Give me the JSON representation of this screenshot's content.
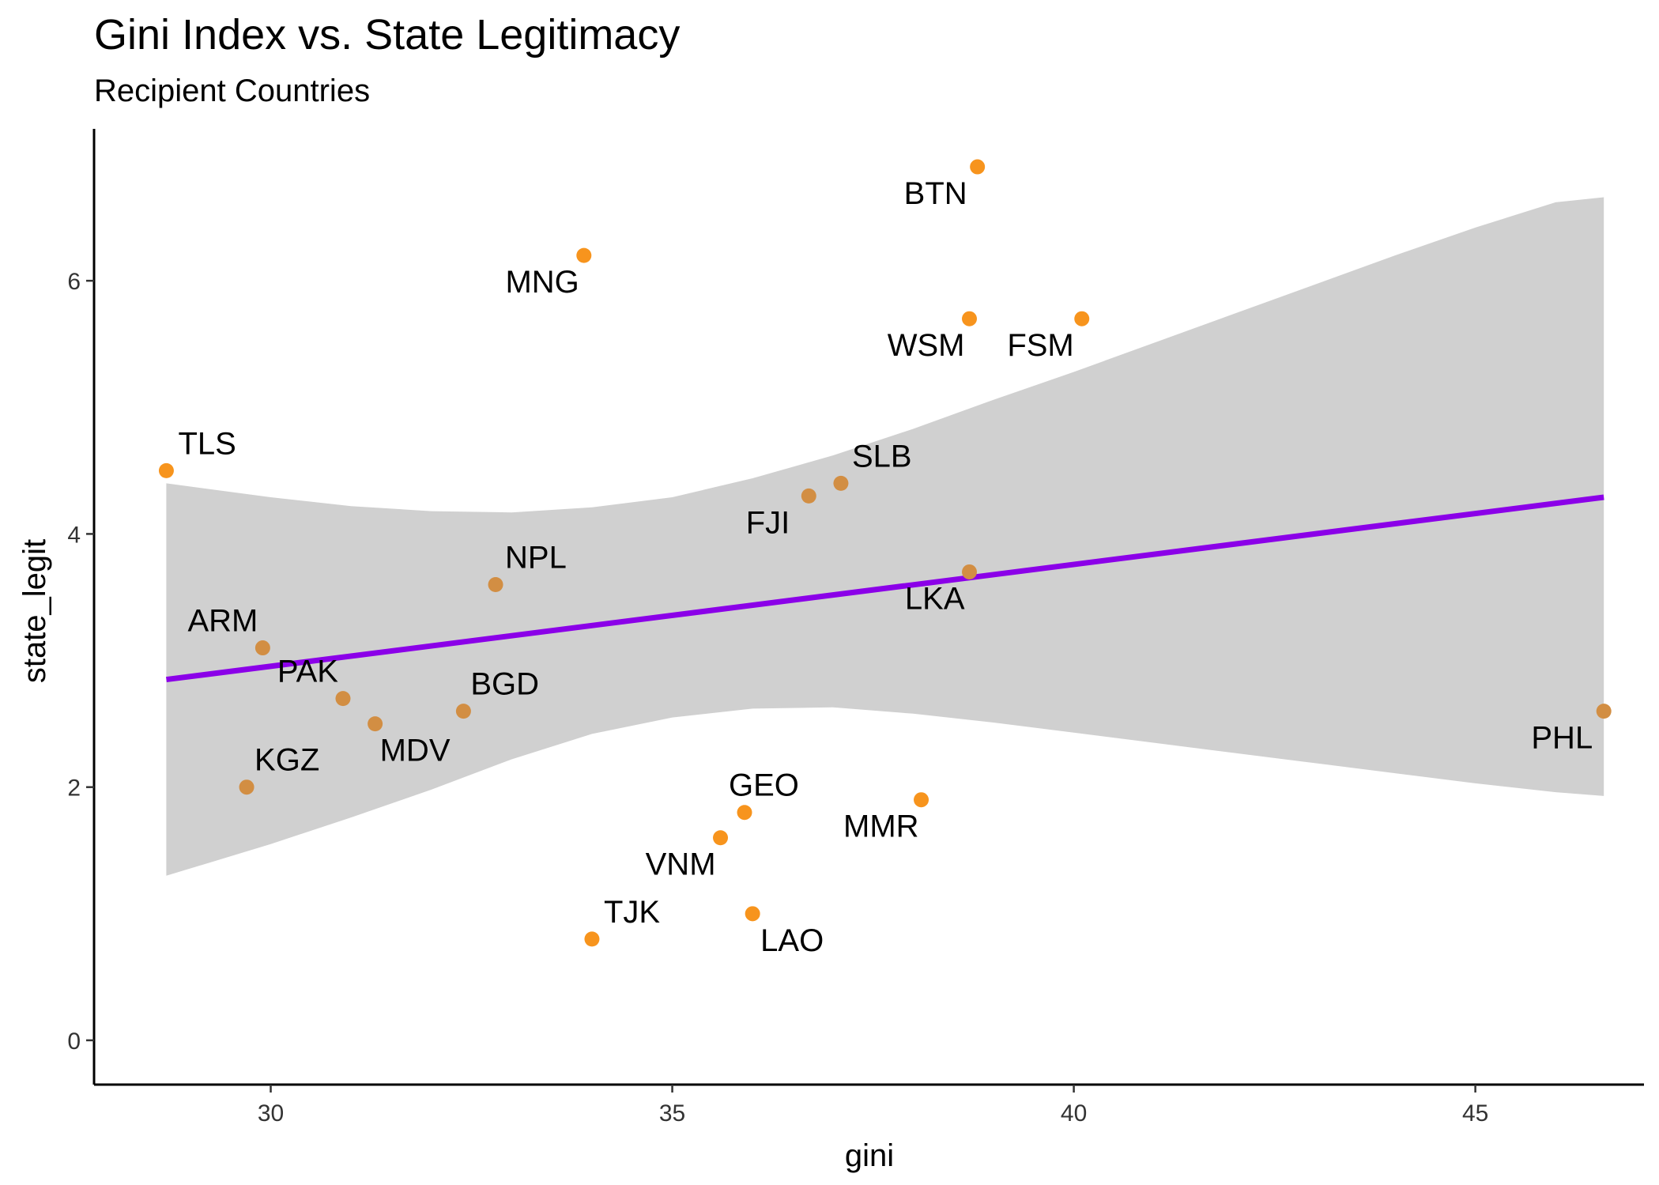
{
  "chart_data": {
    "type": "scatter",
    "title": "Gini Index vs. State Legitimacy",
    "subtitle": "Recipient Countries",
    "xlabel": "gini",
    "ylabel": "state_legit",
    "xlim": [
      27.8,
      47.1
    ],
    "ylim": [
      -0.35,
      7.2
    ],
    "x_ticks": [
      30,
      35,
      40,
      45
    ],
    "y_ticks": [
      0,
      2,
      4,
      6
    ],
    "grid": false,
    "legend": "none",
    "point_color": "#F7941D",
    "overlap_point_color": "#D28E43",
    "fit_line_color": "#8B00E8",
    "band_color": "#D0D0D0",
    "points": [
      {
        "label": "TLS",
        "x": 28.7,
        "y": 4.5
      },
      {
        "label": "ARM",
        "x": 29.9,
        "y": 3.1
      },
      {
        "label": "KGZ",
        "x": 29.7,
        "y": 2.0
      },
      {
        "label": "PAK",
        "x": 30.9,
        "y": 2.7
      },
      {
        "label": "MDV",
        "x": 31.3,
        "y": 2.5
      },
      {
        "label": "BGD",
        "x": 32.4,
        "y": 2.6
      },
      {
        "label": "NPL",
        "x": 32.8,
        "y": 3.6
      },
      {
        "label": "MNG",
        "x": 33.9,
        "y": 6.2
      },
      {
        "label": "TJK",
        "x": 34.0,
        "y": 0.8
      },
      {
        "label": "VNM",
        "x": 35.6,
        "y": 1.6
      },
      {
        "label": "GEO",
        "x": 35.9,
        "y": 1.8
      },
      {
        "label": "LAO",
        "x": 36.0,
        "y": 1.0
      },
      {
        "label": "FJI",
        "x": 36.7,
        "y": 4.3
      },
      {
        "label": "SLB",
        "x": 37.1,
        "y": 4.4
      },
      {
        "label": "MMR",
        "x": 38.1,
        "y": 1.9
      },
      {
        "label": "LKA",
        "x": 38.7,
        "y": 3.7
      },
      {
        "label": "WSM",
        "x": 38.7,
        "y": 5.7
      },
      {
        "label": "BTN",
        "x": 38.8,
        "y": 6.9
      },
      {
        "label": "FSM",
        "x": 40.1,
        "y": 5.7
      },
      {
        "label": "PHL",
        "x": 46.6,
        "y": 2.6
      }
    ],
    "fit_line": {
      "x": [
        28.7,
        46.6
      ],
      "y": [
        2.85,
        4.29
      ]
    },
    "confidence_band": {
      "x": [
        28.7,
        30.0,
        31.0,
        32.0,
        33.0,
        34.0,
        35.0,
        36.0,
        37.0,
        38.0,
        39.0,
        40.0,
        41.0,
        42.0,
        43.0,
        44.0,
        45.0,
        46.0,
        46.6
      ],
      "upper": [
        4.4,
        4.29,
        4.22,
        4.18,
        4.17,
        4.21,
        4.29,
        4.44,
        4.62,
        4.83,
        5.06,
        5.28,
        5.51,
        5.74,
        5.97,
        6.2,
        6.42,
        6.62,
        6.66
      ],
      "lower": [
        1.3,
        1.55,
        1.76,
        1.98,
        2.22,
        2.42,
        2.55,
        2.62,
        2.63,
        2.58,
        2.51,
        2.43,
        2.35,
        2.27,
        2.19,
        2.11,
        2.03,
        1.96,
        1.93
      ]
    }
  }
}
